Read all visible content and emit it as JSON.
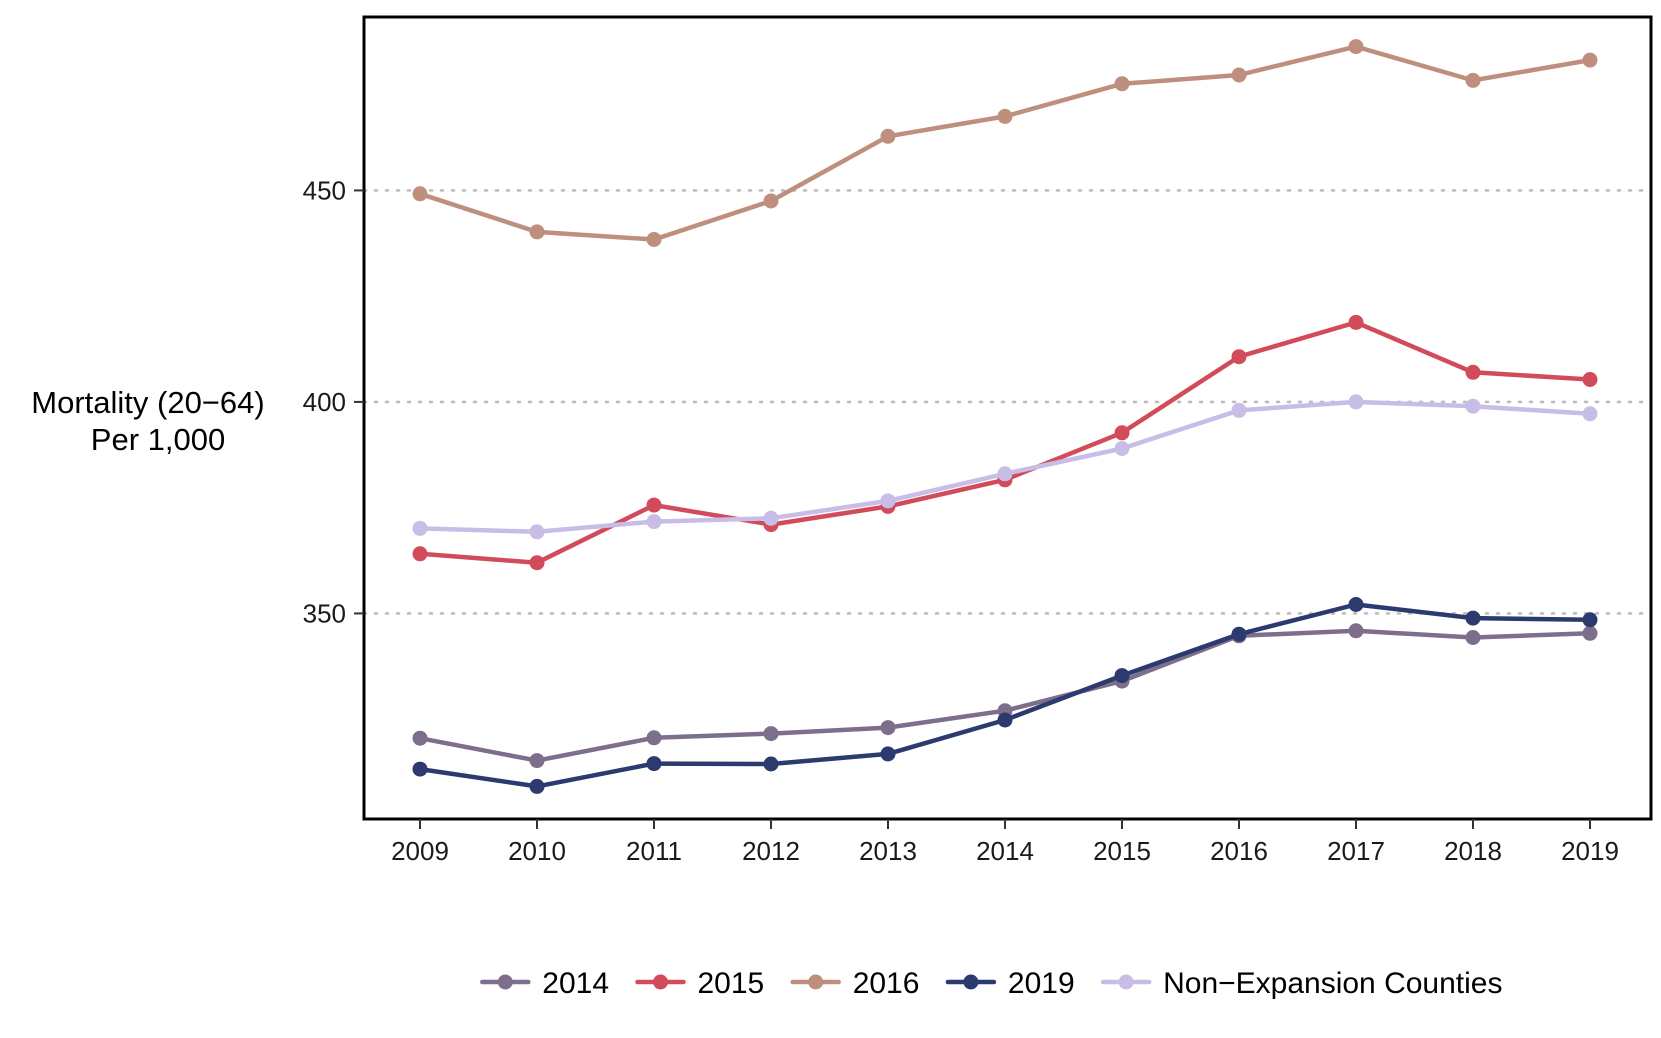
{
  "chart_data": {
    "type": "line",
    "title": "",
    "xlabel": "",
    "ylabel_lines": [
      "Mortality (20−64)",
      "Per 1,000"
    ],
    "x": [
      "2009",
      "2010",
      "2011",
      "2012",
      "2013",
      "2014",
      "2015",
      "2016",
      "2017",
      "2018",
      "2019"
    ],
    "yticks": [
      {
        "value": 350,
        "label": "350"
      },
      {
        "value": 400,
        "label": "400"
      },
      {
        "value": 450,
        "label": "450"
      }
    ],
    "ylim": [
      301.4,
      491
    ],
    "grid": "horizontal dotted at y ticks",
    "legend_position": "bottom",
    "series": [
      {
        "name": "2014",
        "color": "#7d6f8c",
        "values": [
          320.5,
          315.2,
          320.6,
          321.6,
          323.0,
          327.0,
          334.0,
          344.7,
          345.9,
          344.3,
          345.3
        ]
      },
      {
        "name": "2015",
        "color": "#d14b5a",
        "values": [
          364.1,
          362.0,
          375.6,
          371.0,
          375.3,
          381.6,
          392.7,
          410.7,
          418.8,
          407.0,
          405.3
        ]
      },
      {
        "name": "2016",
        "color": "#bf8f7d",
        "values": [
          449.2,
          440.2,
          438.4,
          447.5,
          462.8,
          467.5,
          475.2,
          477.3,
          484.0,
          476.0,
          480.8
        ]
      },
      {
        "name": "2019",
        "color": "#2c3a70",
        "values": [
          313.2,
          309.1,
          314.5,
          314.4,
          316.8,
          324.8,
          335.3,
          345.1,
          352.1,
          348.9,
          348.5
        ]
      },
      {
        "name": "Non−Expansion Counties",
        "color": "#c8bde6",
        "values": [
          370.1,
          369.3,
          371.7,
          372.5,
          376.6,
          383.0,
          389.0,
          398.0,
          400.0,
          399.0,
          397.2
        ]
      }
    ]
  }
}
